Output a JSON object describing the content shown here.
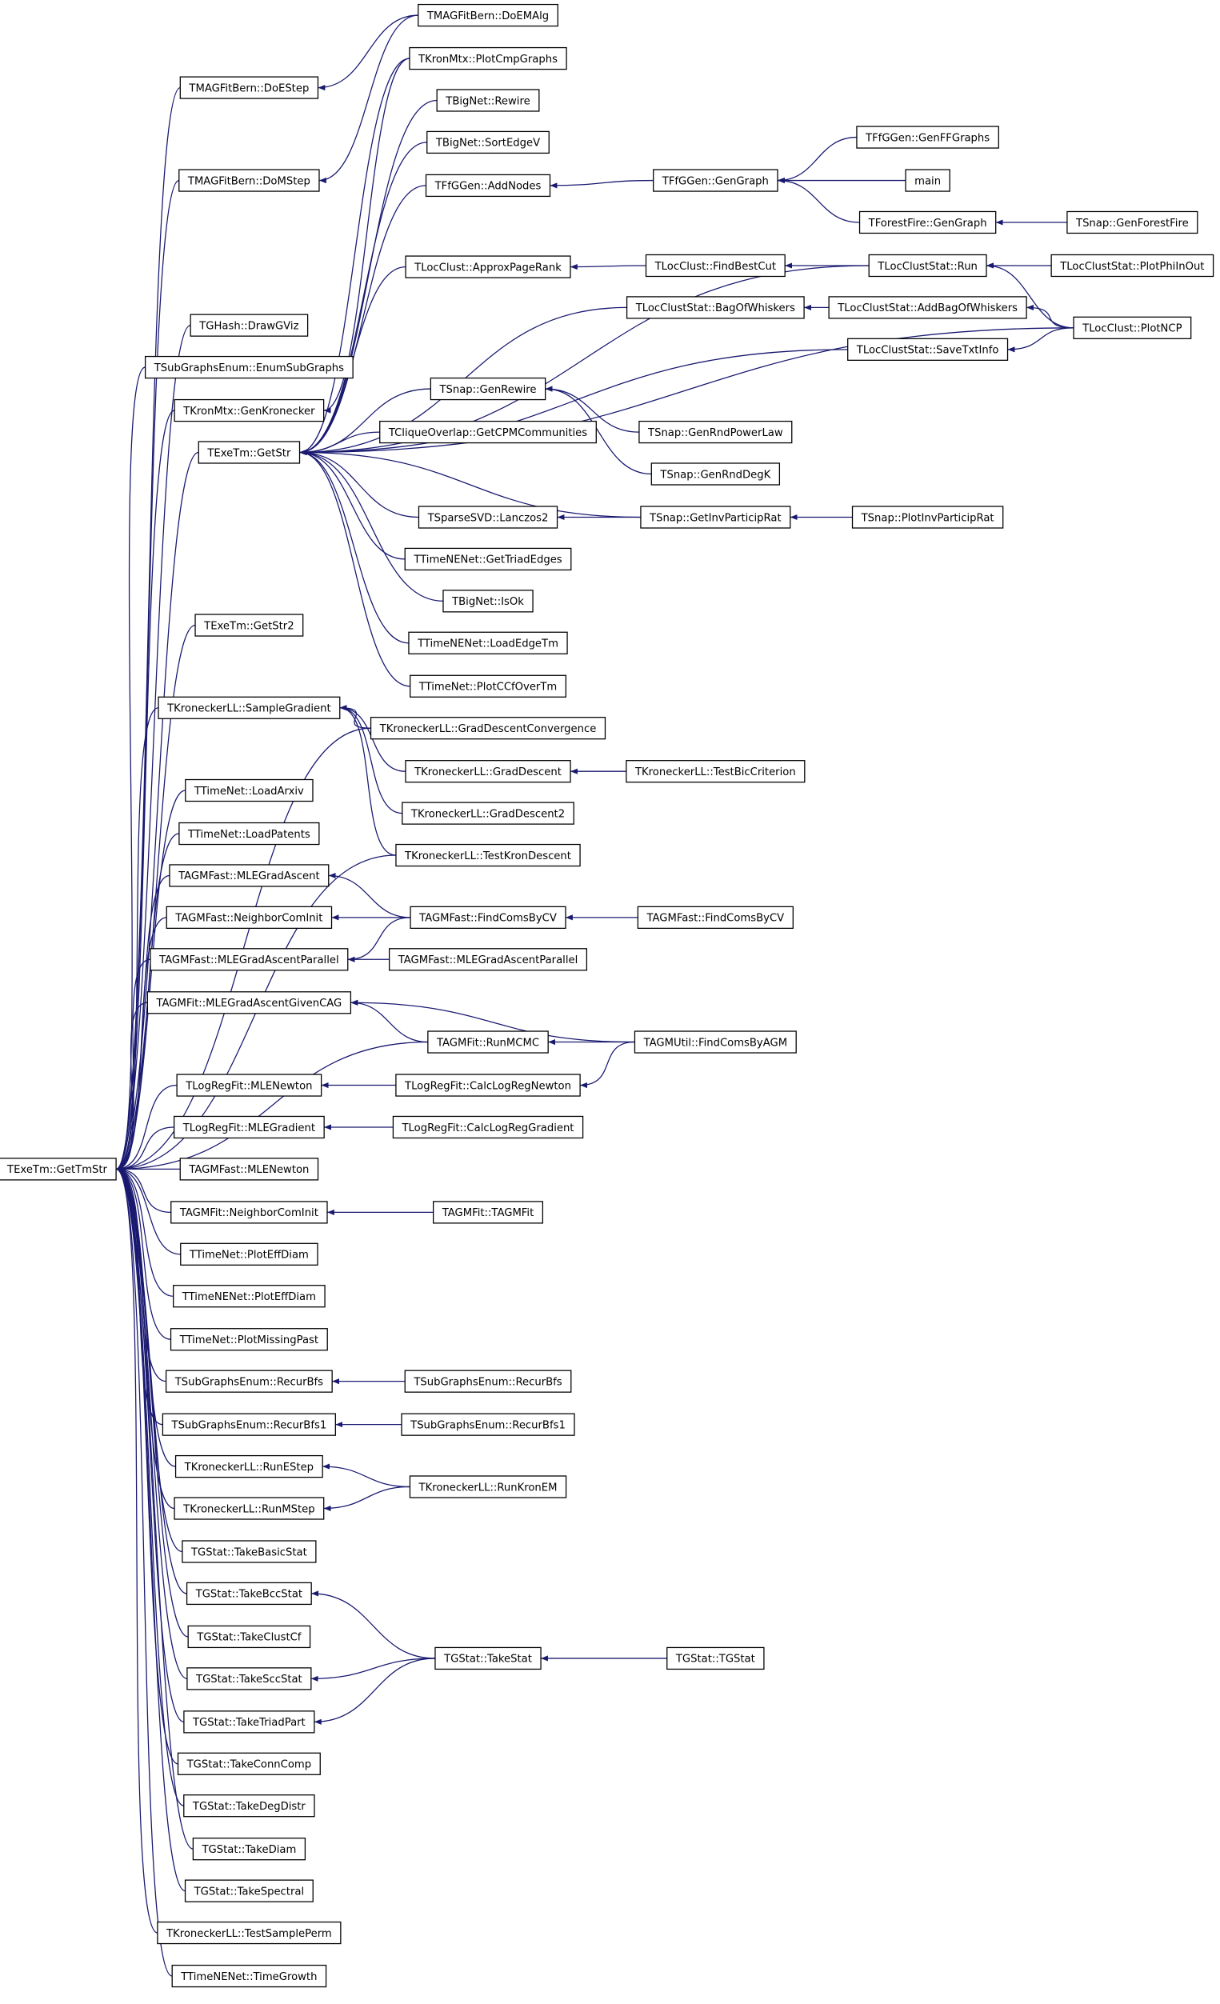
{
  "nodes": [
    {
      "label": "TMAGFitBern::DoEMAlg"
    },
    {
      "label": "TKronMtx::PlotCmpGraphs"
    },
    {
      "label": "TBigNet::Rewire"
    },
    {
      "label": "TBigNet::SortEdgeV"
    },
    {
      "label": "TFfGGen::AddNodes"
    },
    {
      "label": "TFfGGen::GenGraph"
    },
    {
      "label": "TFfGGen::GenFFGraphs"
    },
    {
      "label": "main"
    },
    {
      "label": "TForestFire::GenGraph"
    },
    {
      "label": "TSnap::GenForestFire"
    },
    {
      "label": "TMAGFitBern::DoEStep"
    },
    {
      "label": "TMAGFitBern::DoMStep"
    },
    {
      "label": "TLocClust::ApproxPageRank"
    },
    {
      "label": "TLocClust::FindBestCut"
    },
    {
      "label": "TLocClustStat::Run"
    },
    {
      "label": "TLocClustStat::PlotPhiInOut"
    },
    {
      "label": "TLocClustStat::BagOfWhiskers"
    },
    {
      "label": "TLocClustStat::AddBagOfWhiskers"
    },
    {
      "label": "TLocClust::PlotNCP"
    },
    {
      "label": "TLocClustStat::SaveTxtInfo"
    },
    {
      "label": "TGHash::DrawGViz"
    },
    {
      "label": "TSubGraphsEnum::EnumSubGraphs"
    },
    {
      "label": "TKronMtx::GenKronecker"
    },
    {
      "label": "TExeTm::GetStr"
    },
    {
      "label": "TSnap::GenRewire"
    },
    {
      "label": "TSnap::GenRndPowerLaw"
    },
    {
      "label": "TSnap::GenRndDegK"
    },
    {
      "label": "TCliqueOverlap::GetCPMCommunities"
    },
    {
      "label": "TSparseSVD::Lanczos2"
    },
    {
      "label": "TSnap::GetInvParticipRat"
    },
    {
      "label": "TSnap::PlotInvParticipRat"
    },
    {
      "label": "TTimeNENet::GetTriadEdges"
    },
    {
      "label": "TBigNet::IsOk"
    },
    {
      "label": "TTimeNENet::LoadEdgeTm"
    },
    {
      "label": "TTimeNet::PlotCCfOverTm"
    },
    {
      "label": "TExeTm::GetStr2"
    },
    {
      "label": "TKroneckerLL::SampleGradient"
    },
    {
      "label": "TKroneckerLL::GradDescentConvergence"
    },
    {
      "label": "TKroneckerLL::GradDescent"
    },
    {
      "label": "TKroneckerLL::TestBicCriterion"
    },
    {
      "label": "TKroneckerLL::GradDescent2"
    },
    {
      "label": "TKroneckerLL::TestKronDescent"
    },
    {
      "label": "TTimeNet::LoadArxiv"
    },
    {
      "label": "TTimeNet::LoadPatents"
    },
    {
      "label": "TAGMFast::MLEGradAscent"
    },
    {
      "label": "TAGMFast::NeighborComInit"
    },
    {
      "label": "TAGMFast::FindComsByCV"
    },
    {
      "label": "TAGMFast::FindComsByCV"
    },
    {
      "label": "TAGMFast::MLEGradAscentParallel"
    },
    {
      "label": "TAGMFast::MLEGradAscentParallel"
    },
    {
      "label": "TAGMFit::MLEGradAscentGivenCAG"
    },
    {
      "label": "TAGMFit::RunMCMC"
    },
    {
      "label": "TAGMUtil::FindComsByAGM"
    },
    {
      "label": "TLogRegFit::MLENewton"
    },
    {
      "label": "TLogRegFit::CalcLogRegNewton"
    },
    {
      "label": "TLogRegFit::MLEGradient"
    },
    {
      "label": "TLogRegFit::CalcLogRegGradient"
    },
    {
      "label": "TExeTm::GetTmStr"
    },
    {
      "label": "TAGMFast::MLENewton"
    },
    {
      "label": "TAGMFit::NeighborComInit"
    },
    {
      "label": "TAGMFit::TAGMFit"
    },
    {
      "label": "TTimeNet::PlotEffDiam"
    },
    {
      "label": "TTimeNENet::PlotEffDiam"
    },
    {
      "label": "TTimeNet::PlotMissingPast"
    },
    {
      "label": "TSubGraphsEnum::RecurBfs"
    },
    {
      "label": "TSubGraphsEnum::RecurBfs"
    },
    {
      "label": "TSubGraphsEnum::RecurBfs1"
    },
    {
      "label": "TSubGraphsEnum::RecurBfs1"
    },
    {
      "label": "TKroneckerLL::RunEStep"
    },
    {
      "label": "TKroneckerLL::RunKronEM"
    },
    {
      "label": "TKroneckerLL::RunMStep"
    },
    {
      "label": "TGStat::TakeBasicStat"
    },
    {
      "label": "TGStat::TakeBccStat"
    },
    {
      "label": "TGStat::TakeStat"
    },
    {
      "label": "TGStat::TGStat"
    },
    {
      "label": "TGStat::TakeClustCf"
    },
    {
      "label": "TGStat::TakeSccStat"
    },
    {
      "label": "TGStat::TakeTriadPart"
    },
    {
      "label": "TGStat::TakeConnComp"
    },
    {
      "label": "TGStat::TakeDegDistr"
    },
    {
      "label": "TGStat::TakeDiam"
    },
    {
      "label": "TGStat::TakeSpectral"
    },
    {
      "label": "TKroneckerLL::TestSamplePerm"
    },
    {
      "label": "TTimeNENet::TimeGrowth"
    }
  ]
}
